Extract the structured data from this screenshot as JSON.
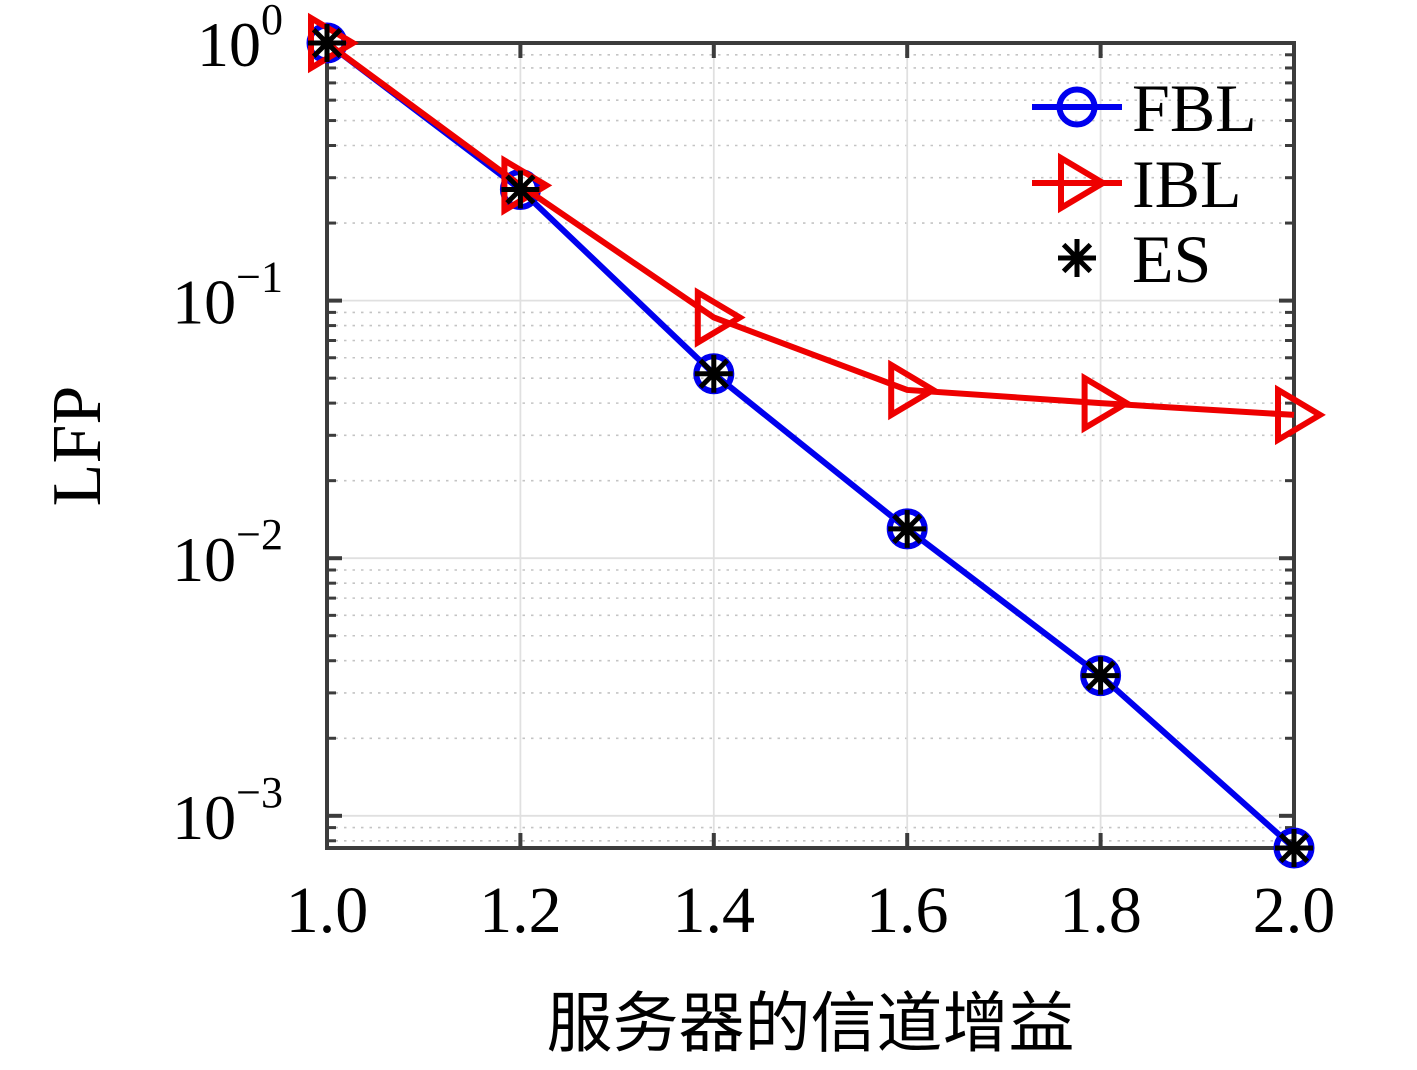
{
  "chart_data": {
    "type": "line",
    "title": "",
    "xlabel": "服务器的信道增益",
    "ylabel": "LFP",
    "yscale": "log",
    "xlim": [
      1.0,
      2.0
    ],
    "ylim": [
      0.00075,
      1.0
    ],
    "xticks": [
      1.0,
      1.2,
      1.4,
      1.6,
      1.8,
      2.0
    ],
    "ytick_exponents": [
      0,
      -1,
      -2,
      -3
    ],
    "x": [
      1.0,
      1.2,
      1.4,
      1.6,
      1.8,
      2.0
    ],
    "series": [
      {
        "name": "FBL",
        "color": "#0000ee",
        "marker": "circle",
        "line": true,
        "values": [
          1.0,
          0.27,
          0.052,
          0.013,
          0.0035,
          0.00075
        ]
      },
      {
        "name": "IBL",
        "color": "#ee0000",
        "marker": "triangle-right",
        "line": true,
        "values": [
          1.0,
          0.28,
          0.086,
          0.045,
          0.04,
          0.036
        ]
      },
      {
        "name": "ES",
        "color": "#000000",
        "marker": "asterisk",
        "line": false,
        "values": [
          1.0,
          0.27,
          0.052,
          0.013,
          0.0035,
          0.00075
        ]
      }
    ],
    "legend": {
      "position": "top-right-inside",
      "box": false,
      "items": [
        "FBL",
        "IBL",
        "ES"
      ]
    },
    "grid": {
      "x_major": true,
      "y_major": true,
      "y_minor": "dotted"
    },
    "colors": {
      "axis": "#3c3c3c",
      "grid_major": "#e0e0e0",
      "grid_minor": "#c4c4c4",
      "background": "#ffffff"
    }
  }
}
